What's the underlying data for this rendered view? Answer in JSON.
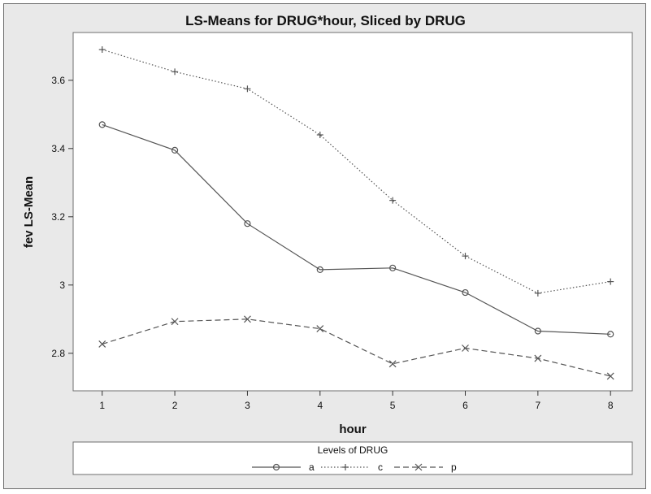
{
  "chart_data": {
    "type": "line",
    "title": "LS-Means for DRUG*hour, Sliced by DRUG",
    "xlabel": "hour",
    "ylabel": "fev LS-Mean",
    "x": [
      1,
      2,
      3,
      4,
      5,
      6,
      7,
      8
    ],
    "xticks": [
      "1",
      "2",
      "3",
      "4",
      "5",
      "6",
      "7",
      "8"
    ],
    "yticks": [
      {
        "value": 2.8,
        "label": "2.8"
      },
      {
        "value": 3.0,
        "label": "3"
      },
      {
        "value": 3.2,
        "label": "3.2"
      },
      {
        "value": 3.4,
        "label": "3.4"
      },
      {
        "value": 3.6,
        "label": "3.6"
      }
    ],
    "xlim": [
      0.6,
      8.3
    ],
    "ylim": [
      2.69,
      3.74
    ],
    "grid": false,
    "legend": {
      "title": "Levels of DRUG",
      "position": "bottom"
    },
    "series": [
      {
        "name": "a",
        "values": [
          3.47,
          3.395,
          3.18,
          3.045,
          3.05,
          2.978,
          2.865,
          2.856
        ],
        "marker": "circle",
        "dash": "solid",
        "color": "#555555"
      },
      {
        "name": "c",
        "values": [
          3.69,
          3.625,
          3.575,
          3.44,
          3.248,
          3.085,
          2.976,
          3.01
        ],
        "marker": "plus",
        "dash": "dotted",
        "color": "#555555"
      },
      {
        "name": "p",
        "values": [
          2.827,
          2.893,
          2.9,
          2.872,
          2.769,
          2.815,
          2.785,
          2.733
        ],
        "marker": "x",
        "dash": "dashed",
        "color": "#555555"
      }
    ]
  }
}
